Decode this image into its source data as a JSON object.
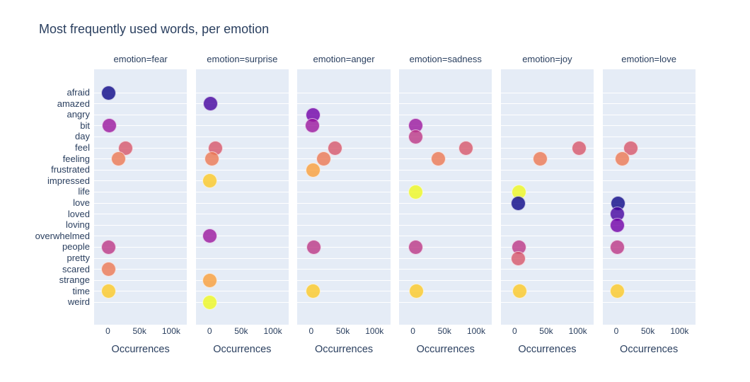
{
  "chart_data": {
    "type": "scatter",
    "title": "Most frequently used words, per emotion",
    "xlabel": "Occurrences",
    "x_tick_labels": [
      "0",
      "50k",
      "100k"
    ],
    "x_tick_values": [
      0,
      50000,
      100000
    ],
    "x_range": [
      -21800,
      125100
    ],
    "grid": "horizontal-only",
    "legend_position": "none",
    "categories": [
      "afraid",
      "amazed",
      "angry",
      "bit",
      "day",
      "feel",
      "feeling",
      "frustrated",
      "impressed",
      "life",
      "love",
      "loved",
      "loving",
      "overwhelmed",
      "people",
      "pretty",
      "scared",
      "strange",
      "time",
      "weird"
    ],
    "palette": {
      "afraid": "#0d0887",
      "amazed": "#46039f",
      "angry": "#7201a8",
      "bit": "#9c179e",
      "day": "#bd3786",
      "feel": "#d8576b",
      "feeling": "#ed7953",
      "frustrated": "#fb9f3a",
      "impressed": "#fdca26",
      "life": "#f0f921",
      "love": "#0d0887",
      "loved": "#46039f",
      "loving": "#7201a8",
      "overwhelmed": "#9c179e",
      "people": "#bd3786",
      "pretty": "#d8576b",
      "scared": "#ed7953",
      "strange": "#fb9f3a",
      "time": "#fdca26",
      "weird": "#f0f921"
    },
    "marker_opacity": 0.8,
    "theme": {
      "panel_background": "#e5ecf6",
      "grid_color": "#ffffff",
      "text_color": "#2a3f5f",
      "page_background": "#ffffff"
    },
    "facets": [
      {
        "label": "emotion=fear",
        "points": [
          {
            "word": "afraid",
            "value": 1200
          },
          {
            "word": "bit",
            "value": 2000
          },
          {
            "word": "feel",
            "value": 28300
          },
          {
            "word": "feeling",
            "value": 16800
          },
          {
            "word": "people",
            "value": 1300
          },
          {
            "word": "scared",
            "value": 1300
          },
          {
            "word": "time",
            "value": 1000
          }
        ]
      },
      {
        "label": "emotion=surprise",
        "points": [
          {
            "word": "amazed",
            "value": 1100
          },
          {
            "word": "feel",
            "value": 9200
          },
          {
            "word": "feeling",
            "value": 3700
          },
          {
            "word": "impressed",
            "value": 600
          },
          {
            "word": "overwhelmed",
            "value": 800
          },
          {
            "word": "strange",
            "value": 500
          },
          {
            "word": "weird",
            "value": 600
          }
        ]
      },
      {
        "label": "emotion=anger",
        "points": [
          {
            "word": "angry",
            "value": 2800
          },
          {
            "word": "bit",
            "value": 2000
          },
          {
            "word": "feel",
            "value": 37500
          },
          {
            "word": "feeling",
            "value": 19400
          },
          {
            "word": "frustrated",
            "value": 2800
          },
          {
            "word": "people",
            "value": 3900
          },
          {
            "word": "time",
            "value": 2800
          }
        ]
      },
      {
        "label": "emotion=sadness",
        "points": [
          {
            "word": "bit",
            "value": 3900
          },
          {
            "word": "day",
            "value": 3900
          },
          {
            "word": "feel",
            "value": 84000
          },
          {
            "word": "feeling",
            "value": 40000
          },
          {
            "word": "life",
            "value": 3900
          },
          {
            "word": "people",
            "value": 3900
          },
          {
            "word": "time",
            "value": 5000
          }
        ]
      },
      {
        "label": "emotion=joy",
        "points": [
          {
            "word": "feel",
            "value": 102000
          },
          {
            "word": "feeling",
            "value": 41000
          },
          {
            "word": "life",
            "value": 6600
          },
          {
            "word": "love",
            "value": 5400
          },
          {
            "word": "people",
            "value": 6600
          },
          {
            "word": "pretty",
            "value": 5400
          },
          {
            "word": "time",
            "value": 7700
          }
        ]
      },
      {
        "label": "emotion=love",
        "points": [
          {
            "word": "feel",
            "value": 23300
          },
          {
            "word": "feeling",
            "value": 10000
          },
          {
            "word": "love",
            "value": 2300
          },
          {
            "word": "loved",
            "value": 1200
          },
          {
            "word": "loving",
            "value": 1200
          },
          {
            "word": "people",
            "value": 1200
          },
          {
            "word": "time",
            "value": 1200
          }
        ]
      }
    ]
  }
}
